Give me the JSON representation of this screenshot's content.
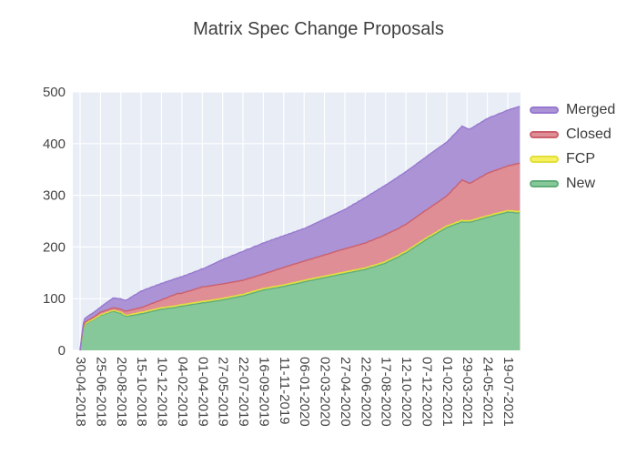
{
  "title": "Matrix Spec Change Proposals",
  "legend": [
    {
      "label": "Merged",
      "fill": "#ab93d6",
      "line": "#9779cf"
    },
    {
      "label": "Closed",
      "fill": "#df8e96",
      "line": "#cb606c"
    },
    {
      "label": "FCP",
      "fill": "#f5f160",
      "line": "#e3de3a"
    },
    {
      "label": "New",
      "fill": "#87c89b",
      "line": "#60ac79"
    }
  ],
  "colors": {
    "plot_bg": "#e8edf6",
    "grid": "#ffffff",
    "tick_text": "#444444",
    "title_text": "#3e3e3e"
  },
  "chart_data": {
    "type": "area",
    "stacked": true,
    "title": "Matrix Spec Change Proposals",
    "xlabel": "",
    "ylabel": "",
    "ylim": [
      0,
      500
    ],
    "y_ticks": [
      0,
      100,
      200,
      300,
      400,
      500
    ],
    "x_tick_interval_days": 56,
    "x_tick_labels": [
      "30-04-2018",
      "25-06-2018",
      "20-08-2018",
      "15-10-2018",
      "10-12-2018",
      "04-02-2019",
      "01-04-2019",
      "27-05-2019",
      "22-07-2019",
      "16-09-2019",
      "11-11-2019",
      "06-01-2020",
      "02-03-2020",
      "27-04-2020",
      "22-06-2020",
      "17-08-2020",
      "12-10-2020",
      "07-12-2020",
      "01-02-2021",
      "29-03-2021",
      "24-05-2021",
      "19-07-2021"
    ],
    "legend_position": "right",
    "grid": true,
    "series_order_bottom_to_top": [
      "New",
      "FCP",
      "Closed",
      "Merged"
    ],
    "points": [
      {
        "date": "30-04-2018",
        "new": 0,
        "fcp": 0,
        "closed": 0,
        "merged": 0
      },
      {
        "date": "06-05-2018",
        "new": 30,
        "fcp": 0,
        "closed": 2,
        "merged": 5
      },
      {
        "date": "10-05-2018",
        "new": 46,
        "fcp": 1,
        "closed": 3,
        "merged": 8
      },
      {
        "date": "16-05-2018",
        "new": 52,
        "fcp": 1,
        "closed": 3,
        "merged": 8
      },
      {
        "date": "11-06-2018",
        "new": 62,
        "fcp": 1,
        "closed": 4,
        "merged": 9
      },
      {
        "date": "25-06-2018",
        "new": 68,
        "fcp": 1,
        "closed": 5,
        "merged": 10
      },
      {
        "date": "30-07-2018",
        "new": 76,
        "fcp": 2,
        "closed": 5,
        "merged": 19
      },
      {
        "date": "20-08-2018",
        "new": 72,
        "fcp": 2,
        "closed": 6,
        "merged": 20
      },
      {
        "date": "03-09-2018",
        "new": 66,
        "fcp": 2,
        "closed": 8,
        "merged": 21
      },
      {
        "date": "15-10-2018",
        "new": 71,
        "fcp": 3,
        "closed": 9,
        "merged": 32
      },
      {
        "date": "10-12-2018",
        "new": 80,
        "fcp": 3,
        "closed": 15,
        "merged": 32
      },
      {
        "date": "21-01-2019",
        "new": 84,
        "fcp": 3,
        "closed": 23,
        "merged": 30
      },
      {
        "date": "04-02-2019",
        "new": 86,
        "fcp": 3,
        "closed": 22,
        "merged": 32
      },
      {
        "date": "01-04-2019",
        "new": 92,
        "fcp": 3,
        "closed": 28,
        "merged": 35
      },
      {
        "date": "27-05-2019",
        "new": 98,
        "fcp": 3,
        "closed": 28,
        "merged": 47
      },
      {
        "date": "22-07-2019",
        "new": 106,
        "fcp": 3,
        "closed": 27,
        "merged": 56
      },
      {
        "date": "16-09-2019",
        "new": 117,
        "fcp": 3,
        "closed": 28,
        "merged": 60
      },
      {
        "date": "11-11-2019",
        "new": 124,
        "fcp": 3,
        "closed": 34,
        "merged": 61
      },
      {
        "date": "06-01-2020",
        "new": 133,
        "fcp": 3,
        "closed": 37,
        "merged": 63
      },
      {
        "date": "02-03-2020",
        "new": 141,
        "fcp": 3,
        "closed": 41,
        "merged": 69
      },
      {
        "date": "27-04-2020",
        "new": 149,
        "fcp": 3,
        "closed": 45,
        "merged": 76
      },
      {
        "date": "22-06-2020",
        "new": 157,
        "fcp": 3,
        "closed": 48,
        "merged": 88
      },
      {
        "date": "17-08-2020",
        "new": 169,
        "fcp": 3,
        "closed": 52,
        "merged": 96
      },
      {
        "date": "12-10-2020",
        "new": 189,
        "fcp": 3,
        "closed": 52,
        "merged": 102
      },
      {
        "date": "07-12-2020",
        "new": 215,
        "fcp": 3,
        "closed": 54,
        "merged": 103
      },
      {
        "date": "01-02-2021",
        "new": 238,
        "fcp": 3,
        "closed": 58,
        "merged": 104
      },
      {
        "date": "15-03-2021",
        "new": 249,
        "fcp": 3,
        "closed": 78,
        "merged": 104
      },
      {
        "date": "05-04-2021",
        "new": 248,
        "fcp": 3,
        "closed": 72,
        "merged": 105
      },
      {
        "date": "24-05-2021",
        "new": 258,
        "fcp": 3,
        "closed": 82,
        "merged": 106
      },
      {
        "date": "19-07-2021",
        "new": 268,
        "fcp": 3,
        "closed": 86,
        "merged": 108
      },
      {
        "date": "23-08-2021",
        "new": 266,
        "fcp": 3,
        "closed": 94,
        "merged": 110
      }
    ]
  }
}
